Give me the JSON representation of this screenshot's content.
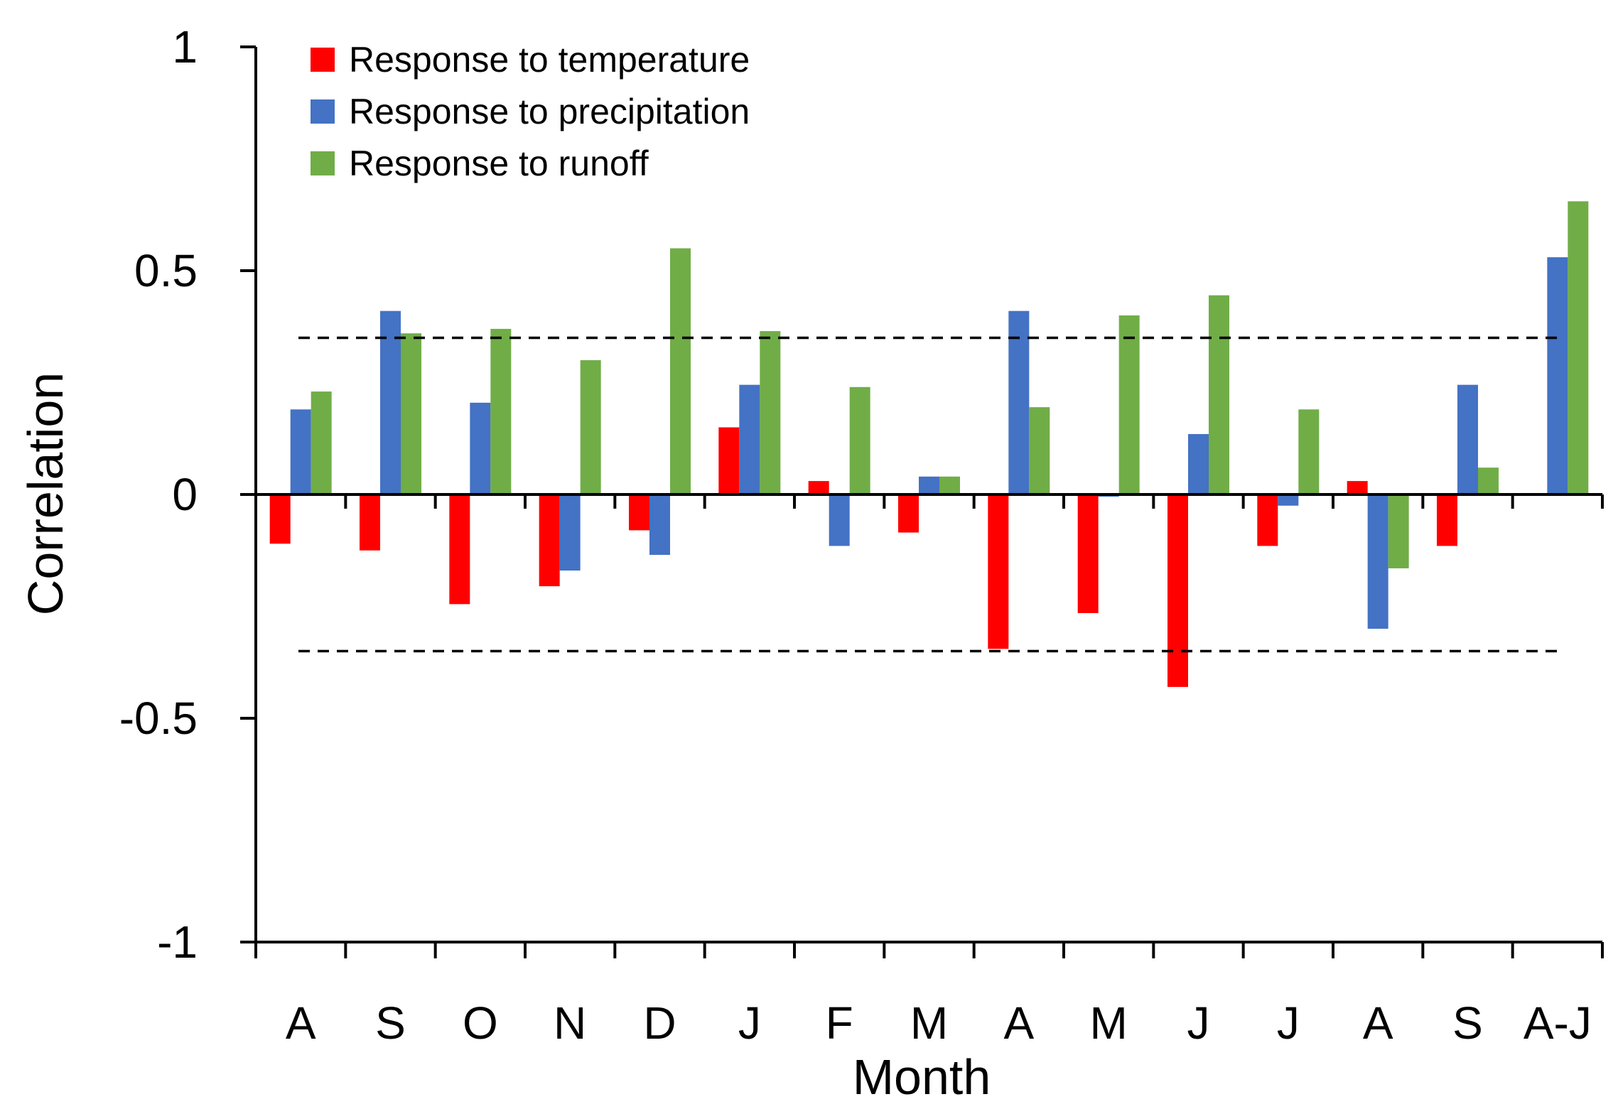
{
  "chart_data": {
    "type": "bar",
    "title": "",
    "xlabel": "Month",
    "ylabel": "Correlation",
    "ylim": [
      -1,
      1
    ],
    "yticks": [
      1,
      0.5,
      0,
      -0.5,
      -1
    ],
    "ytick_labels": [
      "1",
      "0.5",
      "0",
      "-0.5",
      "-1"
    ],
    "grid": false,
    "legend_position": "top-left",
    "categories": [
      "A",
      "S",
      "O",
      "N",
      "D",
      "J",
      "F",
      "M",
      "A",
      "M",
      "J",
      "J",
      "A",
      "S",
      "A-J"
    ],
    "series": [
      {
        "name": "Response to temperature",
        "color": "#ff0000",
        "values": [
          -0.11,
          -0.125,
          -0.245,
          -0.205,
          -0.08,
          0.15,
          0.03,
          -0.085,
          -0.345,
          -0.265,
          -0.43,
          -0.115,
          0.03,
          -0.115,
          null
        ]
      },
      {
        "name": "Response to precipitation",
        "color": "#4472c4",
        "values": [
          0.19,
          0.41,
          0.205,
          -0.17,
          -0.135,
          0.245,
          -0.115,
          0.04,
          0.41,
          -0.005,
          0.135,
          -0.025,
          -0.3,
          0.245,
          0.53
        ]
      },
      {
        "name": "Response to runoff",
        "color": "#70ad47",
        "values": [
          0.23,
          0.36,
          0.37,
          0.3,
          0.55,
          0.365,
          0.24,
          0.04,
          0.195,
          0.4,
          0.445,
          0.19,
          -0.165,
          0.06,
          0.655
        ]
      }
    ],
    "significance_lines": [
      0.35,
      -0.35
    ]
  }
}
